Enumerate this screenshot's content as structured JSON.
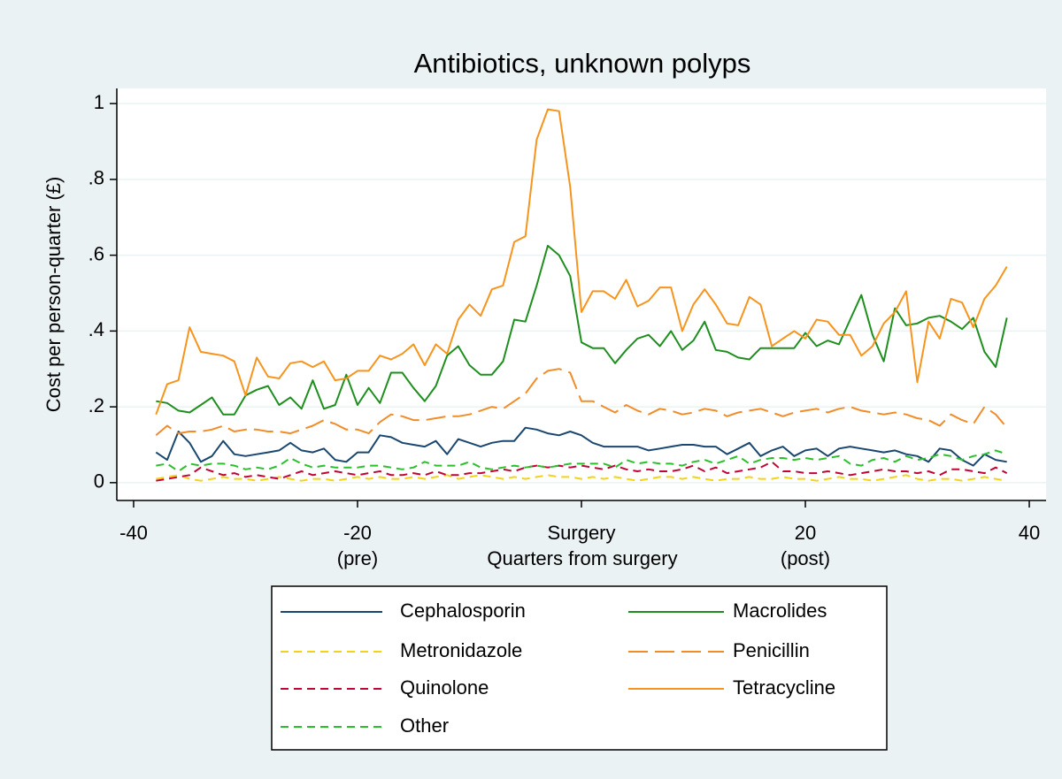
{
  "chart_data": {
    "type": "line",
    "title": "Antibiotics, unknown polyps",
    "ylabel": "Cost per person-quarter (£)",
    "xlabel": "Quarters from surgery",
    "x": [
      -38,
      -37,
      -36,
      -35,
      -34,
      -33,
      -32,
      -31,
      -30,
      -29,
      -28,
      -27,
      -26,
      -25,
      -24,
      -23,
      -22,
      -21,
      -20,
      -19,
      -18,
      -17,
      -16,
      -15,
      -14,
      -13,
      -12,
      -11,
      -10,
      -9,
      -8,
      -7,
      -6,
      -5,
      -4,
      -3,
      -2,
      -1,
      0,
      1,
      2,
      3,
      4,
      5,
      6,
      7,
      8,
      9,
      10,
      11,
      12,
      13,
      14,
      15,
      16,
      17,
      18,
      19,
      20,
      21,
      22,
      23,
      24,
      25,
      26,
      27,
      28,
      29,
      30,
      31,
      32,
      33,
      34,
      35,
      36,
      37,
      38
    ],
    "xlim": [
      -41.5,
      41.5
    ],
    "xticks": [
      -40,
      -20,
      {
        "value": 0,
        "label": "Surgery"
      },
      20,
      40
    ],
    "x_annotations": [
      {
        "x": -20,
        "text": "(pre)"
      },
      {
        "x": 20,
        "text": "(post)"
      }
    ],
    "ylim": [
      -0.047,
      1.04
    ],
    "yticks": [
      0,
      {
        "value": 0.2,
        "label": ".2"
      },
      {
        "value": 0.4,
        "label": ".4"
      },
      {
        "value": 0.6,
        "label": ".6"
      },
      {
        "value": 0.8,
        "label": ".8"
      },
      1
    ],
    "grid": true,
    "legend": "bottom",
    "series": [
      {
        "name": "Cephalosporin",
        "color": "#1a476f",
        "dash": "solid",
        "values": [
          0.08,
          0.06,
          0.135,
          0.105,
          0.055,
          0.07,
          0.11,
          0.075,
          0.07,
          0.075,
          0.08,
          0.085,
          0.105,
          0.085,
          0.08,
          0.09,
          0.06,
          0.055,
          0.08,
          0.08,
          0.125,
          0.12,
          0.105,
          0.1,
          0.095,
          0.11,
          0.075,
          0.115,
          0.105,
          0.095,
          0.105,
          0.11,
          0.11,
          0.145,
          0.14,
          0.13,
          0.125,
          0.135,
          0.125,
          0.105,
          0.095,
          0.095,
          0.095,
          0.095,
          0.085,
          0.09,
          0.095,
          0.1,
          0.1,
          0.095,
          0.095,
          0.075,
          0.09,
          0.105,
          0.07,
          0.085,
          0.095,
          0.07,
          0.085,
          0.09,
          0.07,
          0.09,
          0.095,
          0.09,
          0.085,
          0.08,
          0.085,
          0.075,
          0.07,
          0.055,
          0.09,
          0.085,
          0.06,
          0.045,
          0.075,
          0.06,
          0.055
        ]
      },
      {
        "name": "Macrolides",
        "color": "#1e8f1e",
        "dash": "solid",
        "values": [
          0.215,
          0.21,
          0.19,
          0.185,
          0.205,
          0.225,
          0.18,
          0.18,
          0.23,
          0.245,
          0.255,
          0.205,
          0.225,
          0.195,
          0.27,
          0.195,
          0.205,
          0.285,
          0.205,
          0.25,
          0.21,
          0.29,
          0.29,
          0.25,
          0.215,
          0.255,
          0.335,
          0.36,
          0.31,
          0.285,
          0.285,
          0.32,
          0.43,
          0.425,
          0.52,
          0.625,
          0.6,
          0.545,
          0.37,
          0.355,
          0.355,
          0.315,
          0.35,
          0.38,
          0.39,
          0.36,
          0.4,
          0.35,
          0.375,
          0.425,
          0.35,
          0.345,
          0.33,
          0.325,
          0.355,
          0.355,
          0.355,
          0.355,
          0.395,
          0.36,
          0.375,
          0.365,
          0.43,
          0.495,
          0.39,
          0.32,
          0.46,
          0.415,
          0.42,
          0.435,
          0.44,
          0.425,
          0.405,
          0.435,
          0.345,
          0.305,
          0.435
        ]
      },
      {
        "name": "Metronidazole",
        "color": "#f2d21b",
        "dash": "short",
        "values": [
          0.01,
          0.015,
          0.02,
          0.01,
          0.005,
          0.01,
          0.015,
          0.01,
          0.01,
          0.005,
          0.01,
          0.015,
          0.01,
          0.005,
          0.01,
          0.01,
          0.005,
          0.01,
          0.015,
          0.01,
          0.015,
          0.01,
          0.01,
          0.015,
          0.01,
          0.015,
          0.02,
          0.01,
          0.015,
          0.02,
          0.015,
          0.01,
          0.015,
          0.01,
          0.015,
          0.02,
          0.015,
          0.015,
          0.01,
          0.015,
          0.01,
          0.015,
          0.01,
          0.005,
          0.01,
          0.015,
          0.015,
          0.01,
          0.015,
          0.01,
          0.005,
          0.01,
          0.01,
          0.015,
          0.01,
          0.01,
          0.015,
          0.01,
          0.01,
          0.005,
          0.01,
          0.015,
          0.01,
          0.01,
          0.005,
          0.01,
          0.015,
          0.02,
          0.01,
          0.005,
          0.01,
          0.01,
          0.005,
          0.01,
          0.015,
          0.01,
          0.005
        ]
      },
      {
        "name": "Penicillin",
        "color": "#f28c28",
        "dash": "long",
        "values": [
          0.125,
          0.15,
          0.13,
          0.135,
          0.135,
          0.14,
          0.15,
          0.135,
          0.14,
          0.14,
          0.135,
          0.135,
          0.13,
          0.14,
          0.15,
          0.165,
          0.155,
          0.14,
          0.14,
          0.13,
          0.16,
          0.18,
          0.175,
          0.165,
          0.165,
          0.17,
          0.175,
          0.175,
          0.18,
          0.19,
          0.2,
          0.195,
          0.215,
          0.235,
          0.275,
          0.295,
          0.3,
          0.29,
          0.215,
          0.215,
          0.2,
          0.185,
          0.205,
          0.19,
          0.18,
          0.195,
          0.19,
          0.18,
          0.185,
          0.195,
          0.19,
          0.175,
          0.185,
          0.19,
          0.195,
          0.185,
          0.175,
          0.185,
          0.19,
          0.195,
          0.185,
          0.195,
          0.2,
          0.19,
          0.185,
          0.18,
          0.185,
          0.18,
          0.17,
          0.165,
          0.15,
          0.18,
          0.165,
          0.155,
          0.2,
          0.18,
          0.145
        ]
      },
      {
        "name": "Quinolone",
        "color": "#c10534",
        "dash": "short",
        "values": [
          0.005,
          0.01,
          0.015,
          0.02,
          0.04,
          0.03,
          0.02,
          0.025,
          0.015,
          0.02,
          0.015,
          0.01,
          0.02,
          0.03,
          0.02,
          0.025,
          0.03,
          0.025,
          0.02,
          0.025,
          0.03,
          0.02,
          0.02,
          0.025,
          0.02,
          0.03,
          0.02,
          0.02,
          0.025,
          0.025,
          0.03,
          0.035,
          0.03,
          0.04,
          0.045,
          0.04,
          0.045,
          0.04,
          0.045,
          0.04,
          0.035,
          0.045,
          0.035,
          0.03,
          0.035,
          0.03,
          0.03,
          0.035,
          0.045,
          0.03,
          0.04,
          0.025,
          0.03,
          0.035,
          0.04,
          0.055,
          0.03,
          0.03,
          0.025,
          0.025,
          0.03,
          0.025,
          0.02,
          0.025,
          0.03,
          0.035,
          0.03,
          0.03,
          0.025,
          0.03,
          0.02,
          0.035,
          0.035,
          0.03,
          0.025,
          0.04,
          0.025
        ]
      },
      {
        "name": "Tetracycline",
        "color": "#f7941d",
        "dash": "solid",
        "values": [
          0.18,
          0.26,
          0.27,
          0.41,
          0.345,
          0.34,
          0.335,
          0.32,
          0.23,
          0.33,
          0.28,
          0.275,
          0.315,
          0.32,
          0.305,
          0.32,
          0.27,
          0.275,
          0.295,
          0.295,
          0.335,
          0.325,
          0.34,
          0.365,
          0.31,
          0.365,
          0.34,
          0.43,
          0.47,
          0.44,
          0.51,
          0.52,
          0.635,
          0.65,
          0.905,
          0.985,
          0.98,
          0.78,
          0.45,
          0.505,
          0.505,
          0.485,
          0.535,
          0.465,
          0.48,
          0.515,
          0.515,
          0.4,
          0.47,
          0.51,
          0.47,
          0.42,
          0.415,
          0.49,
          0.47,
          0.36,
          0.38,
          0.4,
          0.38,
          0.43,
          0.425,
          0.39,
          0.39,
          0.335,
          0.36,
          0.42,
          0.45,
          0.505,
          0.265,
          0.425,
          0.38,
          0.485,
          0.475,
          0.41,
          0.485,
          0.52,
          0.57
        ]
      },
      {
        "name": "Other",
        "color": "#2cbf2c",
        "dash": "short",
        "values": [
          0.045,
          0.05,
          0.03,
          0.05,
          0.045,
          0.05,
          0.05,
          0.045,
          0.035,
          0.04,
          0.035,
          0.045,
          0.065,
          0.05,
          0.04,
          0.045,
          0.04,
          0.04,
          0.04,
          0.045,
          0.045,
          0.04,
          0.035,
          0.04,
          0.055,
          0.045,
          0.045,
          0.045,
          0.055,
          0.04,
          0.035,
          0.04,
          0.045,
          0.04,
          0.045,
          0.04,
          0.045,
          0.05,
          0.05,
          0.05,
          0.05,
          0.04,
          0.06,
          0.05,
          0.055,
          0.05,
          0.05,
          0.045,
          0.055,
          0.06,
          0.05,
          0.06,
          0.07,
          0.05,
          0.06,
          0.065,
          0.065,
          0.06,
          0.065,
          0.06,
          0.065,
          0.07,
          0.05,
          0.045,
          0.06,
          0.065,
          0.055,
          0.07,
          0.06,
          0.065,
          0.075,
          0.07,
          0.06,
          0.07,
          0.075,
          0.085,
          0.075
        ]
      }
    ]
  }
}
